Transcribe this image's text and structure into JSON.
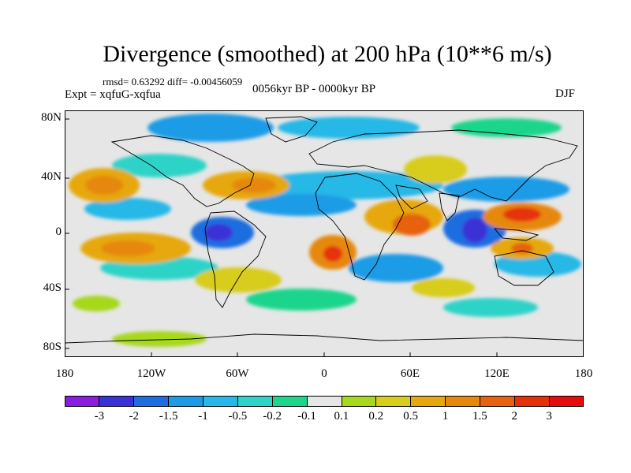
{
  "figure": {
    "title": "Divergence (smoothed) at 200 hPa (10**6 m/s)",
    "stats_line": "rmsd= 0.63292 diff= -0.00456059",
    "experiment_label": "Expt = xqfuG-xqfua",
    "period_label": "0056kyr BP - 0000kyr BP",
    "season_label": "DJF"
  },
  "map": {
    "projection": "cylindrical-equidistant",
    "lat_ticks": [
      "80N",
      "40N",
      "0",
      "40S",
      "80S"
    ],
    "lon_ticks": [
      "180",
      "120W",
      "60W",
      "0",
      "60E",
      "120E",
      "180"
    ],
    "land_outline_color": "#000000",
    "ocean_background": "#e6e6e6"
  },
  "colorbar": {
    "labels": [
      "-3",
      "-2",
      "-1.5",
      "-1",
      "-0.5",
      "-0.2",
      "-0.1",
      "0.1",
      "0.2",
      "0.5",
      "1",
      "1.5",
      "2",
      "3"
    ],
    "colors": [
      "#8a1de0",
      "#3a32d6",
      "#1f6de0",
      "#1e9be6",
      "#26b8e6",
      "#2fd3c8",
      "#1ed58c",
      "#e6e6e6",
      "#a6d81c",
      "#d8cc1c",
      "#e6a80c",
      "#e6880c",
      "#e6620c",
      "#e6300c",
      "#e60c0c"
    ]
  }
}
